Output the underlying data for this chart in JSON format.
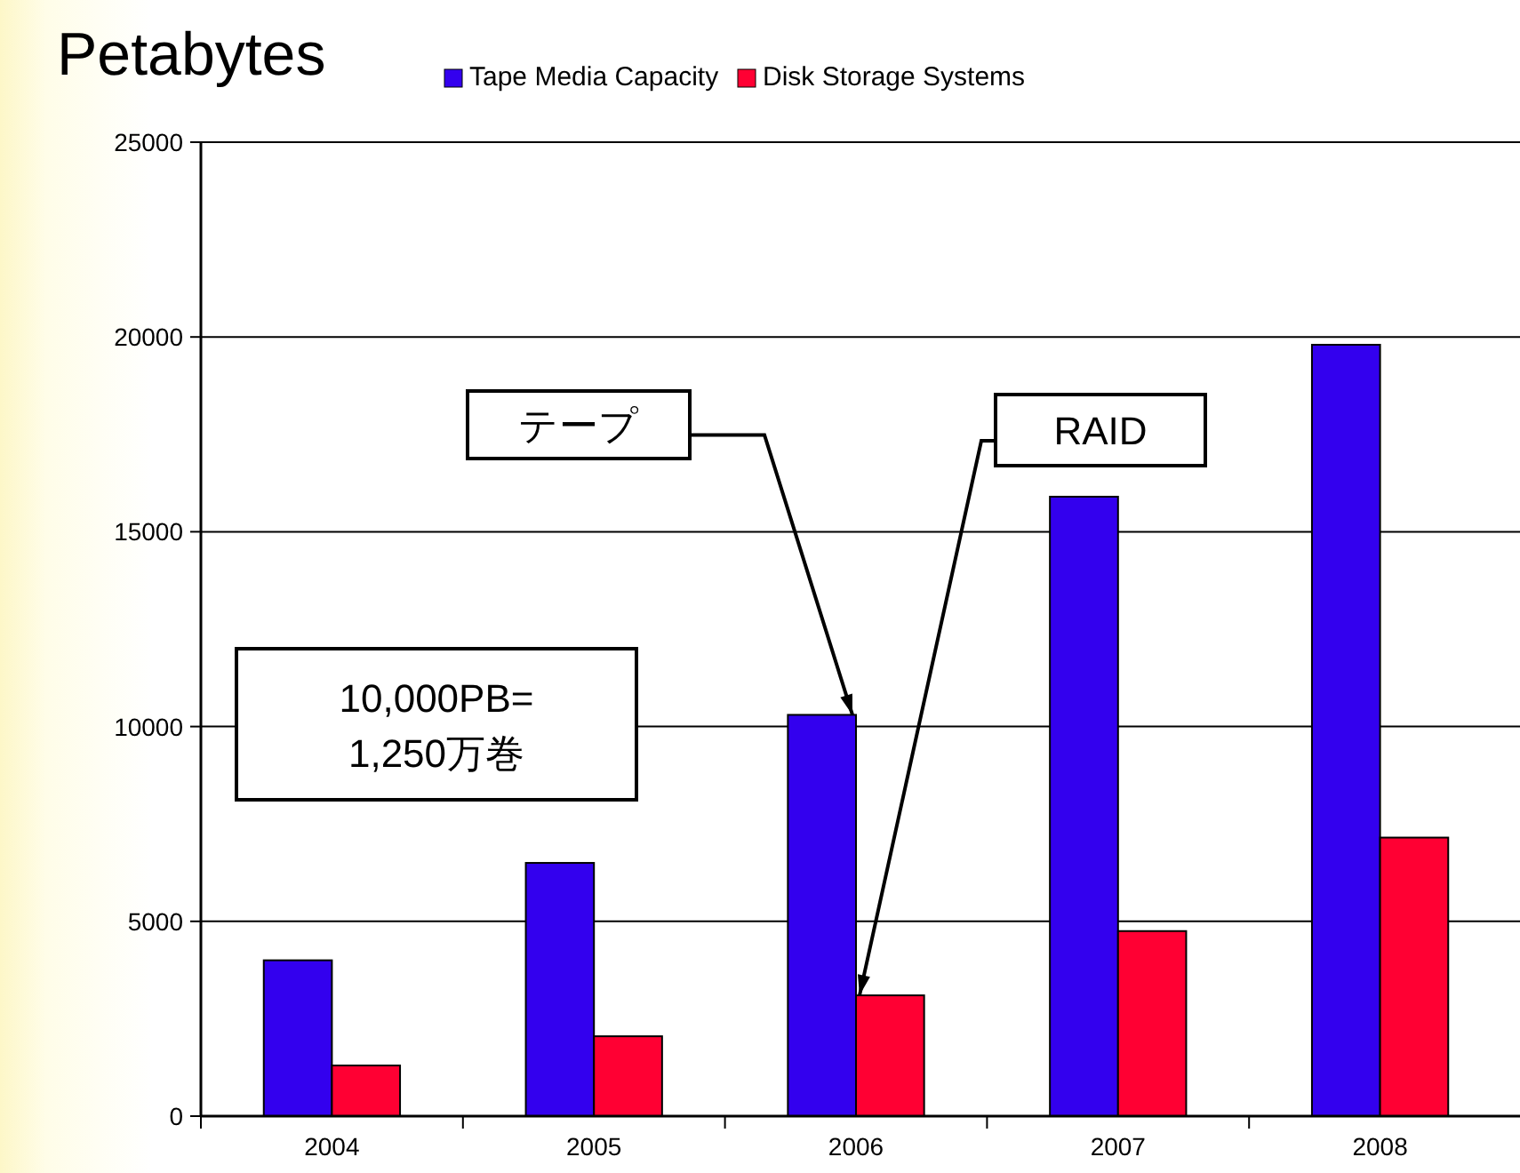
{
  "chart_data": {
    "type": "bar",
    "ylabel": "Petabytes",
    "categories": [
      "2004",
      "2005",
      "2006",
      "2007",
      "2008"
    ],
    "series": [
      {
        "name": "Tape Media Capacity",
        "color": "#3300ee",
        "values": [
          4000,
          6500,
          10300,
          15900,
          19800
        ]
      },
      {
        "name": "Disk Storage Systems",
        "color": "#ff0033",
        "values": [
          1300,
          2050,
          3100,
          4750,
          7150
        ]
      }
    ],
    "ylim": [
      0,
      25000
    ],
    "yticks": [
      0,
      5000,
      10000,
      15000,
      20000,
      25000
    ],
    "grid": "y",
    "legend": "top",
    "annotations": [
      {
        "text": "テープ",
        "x": "2006",
        "y": 10300
      },
      {
        "text": "RAID",
        "x": "2006",
        "y": 3100
      },
      "10,000PB=\n1,250万巻"
    ]
  }
}
